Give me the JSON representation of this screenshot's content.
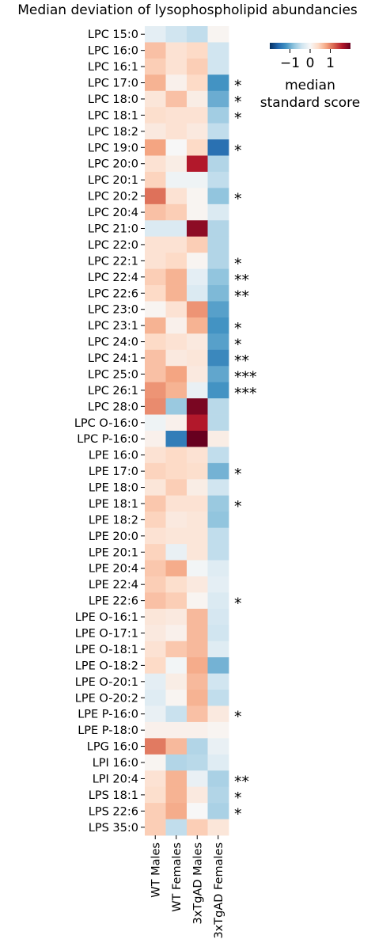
{
  "chart_data": {
    "type": "heatmap",
    "title": "Median deviation of lysophospholipid abundancies",
    "xlabel": "",
    "ylabel": "",
    "columns": [
      "WT Males",
      "WT Females",
      "3xTgAD Males",
      "3xTgAD Females"
    ],
    "rows": [
      "LPC 15:0",
      "LPC 16:0",
      "LPC 16:1",
      "LPC 17:0",
      "LPC 18:0",
      "LPC 18:1",
      "LPC 18:2",
      "LPC 19:0",
      "LPC 20:0",
      "LPC 20:1",
      "LPC 20:2",
      "LPC 20:4",
      "LPC 21:0",
      "LPC 22:0",
      "LPC 22:1",
      "LPC 22:4",
      "LPC 22:6",
      "LPC 23:0",
      "LPC 23:1",
      "LPC 24:0",
      "LPC 24:1",
      "LPC 25:0",
      "LPC 26:1",
      "LPC 28:0",
      "LPC O-16:0",
      "LPC P-16:0",
      "LPE 16:0",
      "LPE 17:0",
      "LPE 18:0",
      "LPE 18:1",
      "LPE 18:2",
      "LPE 20:0",
      "LPE 20:1",
      "LPE 20:4",
      "LPE 22:4",
      "LPE 22:6",
      "LPE O-16:1",
      "LPE O-17:1",
      "LPE O-18:1",
      "LPE O-18:2",
      "LPE O-20:1",
      "LPE O-20:2",
      "LPE P-16:0",
      "LPE P-18:0",
      "LPG 16:0",
      "LPI 16:0",
      "LPI 20:4",
      "LPS 18:1",
      "LPS 22:6",
      "LPS 35:0"
    ],
    "values": [
      [
        -0.2,
        -0.4,
        -0.5,
        0.05
      ],
      [
        0.6,
        0.3,
        0.4,
        -0.4
      ],
      [
        0.5,
        0.3,
        0.5,
        -0.4
      ],
      [
        0.7,
        0.1,
        0.4,
        -1.2
      ],
      [
        0.25,
        0.6,
        0.15,
        -1.0
      ],
      [
        0.35,
        0.3,
        0.3,
        -0.7
      ],
      [
        0.2,
        0.3,
        0.2,
        -0.5
      ],
      [
        0.8,
        0.0,
        0.4,
        -1.5
      ],
      [
        0.3,
        0.15,
        1.6,
        -0.6
      ],
      [
        0.45,
        -0.1,
        -0.1,
        -0.5
      ],
      [
        1.1,
        0.3,
        0.05,
        -0.8
      ],
      [
        0.6,
        0.5,
        0.05,
        -0.3
      ],
      [
        -0.3,
        -0.3,
        1.8,
        -0.6
      ],
      [
        0.3,
        0.3,
        0.5,
        -0.6
      ],
      [
        0.3,
        0.4,
        0.05,
        -0.6
      ],
      [
        0.5,
        0.7,
        -0.2,
        -0.8
      ],
      [
        0.4,
        0.7,
        -0.3,
        -0.9
      ],
      [
        0.05,
        0.3,
        0.9,
        -1.1
      ],
      [
        0.7,
        0.1,
        0.7,
        -1.2
      ],
      [
        0.4,
        0.3,
        0.2,
        -1.1
      ],
      [
        0.6,
        0.2,
        0.25,
        -1.3
      ],
      [
        0.6,
        0.8,
        0.2,
        -1.05
      ],
      [
        0.9,
        0.7,
        -0.15,
        -1.2
      ],
      [
        0.95,
        -0.75,
        1.9,
        -0.55
      ],
      [
        -0.1,
        0.1,
        1.6,
        -0.55
      ],
      [
        0.1,
        -1.4,
        2.0,
        0.15
      ],
      [
        0.3,
        0.4,
        0.3,
        -0.5
      ],
      [
        0.45,
        0.4,
        0.35,
        -0.95
      ],
      [
        0.25,
        0.5,
        0.15,
        -0.4
      ],
      [
        0.55,
        0.3,
        0.3,
        -0.75
      ],
      [
        0.45,
        0.2,
        0.25,
        -0.8
      ],
      [
        0.3,
        0.25,
        0.25,
        -0.5
      ],
      [
        0.45,
        -0.15,
        0.25,
        -0.5
      ],
      [
        0.55,
        0.75,
        -0.05,
        -0.25
      ],
      [
        0.5,
        0.35,
        0.2,
        -0.2
      ],
      [
        0.6,
        0.5,
        0.05,
        -0.3
      ],
      [
        0.25,
        0.2,
        0.65,
        -0.35
      ],
      [
        0.2,
        0.1,
        0.65,
        -0.4
      ],
      [
        0.3,
        0.55,
        0.65,
        -0.25
      ],
      [
        0.4,
        -0.05,
        0.75,
        -0.95
      ],
      [
        -0.2,
        0.15,
        0.65,
        -0.4
      ],
      [
        -0.25,
        0.05,
        0.7,
        -0.5
      ],
      [
        -0.15,
        -0.45,
        0.6,
        0.2
      ],
      [
        0.1,
        0.1,
        0.1,
        0.05
      ],
      [
        1.05,
        0.65,
        -0.6,
        -0.15
      ],
      [
        0.05,
        -0.6,
        -0.55,
        -0.25
      ],
      [
        0.3,
        0.7,
        -0.15,
        -0.65
      ],
      [
        0.35,
        0.7,
        0.2,
        -0.6
      ],
      [
        0.5,
        0.75,
        0.0,
        -0.65
      ],
      [
        0.5,
        -0.5,
        0.5,
        0.25
      ]
    ],
    "significance": {
      "LPC 17:0": "*",
      "LPC 18:0": "*",
      "LPC 18:1": "*",
      "LPC 19:0": "*",
      "LPC 20:2": "*",
      "LPC 22:1": "*",
      "LPC 22:4": "**",
      "LPC 22:6": "**",
      "LPC 23:1": "*",
      "LPC 24:0": "*",
      "LPC 24:1": "**",
      "LPC 25:0": "***",
      "LPC 26:1": "***",
      "LPE 17:0": "*",
      "LPE 18:1": "*",
      "LPE 22:6": "*",
      "LPE P-16:0": "*",
      "LPI 20:4": "**",
      "LPS 18:1": "*",
      "LPS 22:6": "*"
    },
    "colorbar": {
      "label_line1": "median",
      "label_line2": "standard score",
      "ticks": [
        -1,
        0,
        1
      ],
      "tick_labels": [
        "−1",
        "0",
        "1"
      ],
      "range": [
        -2,
        2
      ],
      "colormap": "RdBu_r",
      "colors": [
        "#053061",
        "#2166ac",
        "#4393c3",
        "#92c5de",
        "#d1e5f0",
        "#f7f7f7",
        "#fddbc7",
        "#f4a582",
        "#d6604d",
        "#b2182b",
        "#67001f"
      ]
    }
  }
}
